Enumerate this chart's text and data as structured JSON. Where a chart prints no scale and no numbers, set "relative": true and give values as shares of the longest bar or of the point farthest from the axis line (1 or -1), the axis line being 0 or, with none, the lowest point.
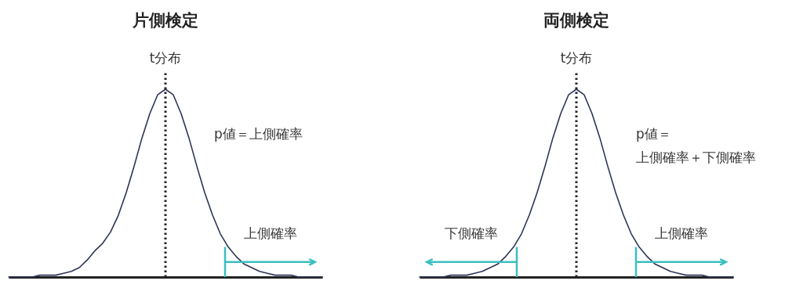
{
  "chart_data": [
    {
      "type": "line",
      "title": "片側検定",
      "relative": true,
      "categories": [
        null,
        null,
        null,
        null,
        null,
        null,
        null,
        null,
        null,
        null,
        null,
        null,
        null,
        null,
        null,
        null,
        null,
        null,
        null,
        null,
        null,
        null,
        null,
        null,
        null,
        null,
        null,
        null,
        null,
        null,
        null,
        null,
        null,
        null,
        null,
        null,
        null,
        null,
        null,
        null,
        null
      ],
      "series": [
        {
          "color": "#2d3557",
          "values": [
            0,
            0,
            0,
            0,
            0.01,
            0.01,
            0.01,
            0.02,
            0.03,
            0.05,
            0.09,
            0.14,
            0.18,
            0.24,
            0.33,
            0.45,
            0.59,
            0.74,
            0.87,
            0.97,
            1,
            0.97,
            0.87,
            0.74,
            0.59,
            0.45,
            0.33,
            0.23,
            0.16,
            0.11,
            0.07,
            0.05,
            0.03,
            0.02,
            0.01,
            0.01,
            0.01,
            0,
            0,
            0,
            0
          ]
        }
      ],
      "annotations": [
        "t分布",
        "上側確率",
        "p値＝上側確率"
      ]
    },
    {
      "type": "line",
      "title": "両側検定",
      "relative": true,
      "categories": [
        null,
        null,
        null,
        null,
        null,
        null,
        null,
        null,
        null,
        null,
        null,
        null,
        null,
        null,
        null,
        null,
        null,
        null,
        null,
        null,
        null,
        null,
        null,
        null,
        null,
        null,
        null,
        null,
        null,
        null,
        null,
        null,
        null,
        null,
        null,
        null,
        null,
        null,
        null,
        null,
        null
      ],
      "series": [
        {
          "color": "#2d3557",
          "values": [
            0,
            0,
            0,
            0,
            0.01,
            0.01,
            0.01,
            0.02,
            0.03,
            0.05,
            0.07,
            0.11,
            0.16,
            0.23,
            0.33,
            0.45,
            0.59,
            0.74,
            0.87,
            0.97,
            1,
            0.97,
            0.87,
            0.74,
            0.59,
            0.45,
            0.33,
            0.23,
            0.16,
            0.11,
            0.07,
            0.05,
            0.03,
            0.02,
            0.01,
            0.01,
            0.01,
            0,
            0,
            0,
            0
          ]
        }
      ],
      "annotations": [
        "t分布",
        "下側確率",
        "上側確率",
        "p値＝",
        "上側確率＋下側確率"
      ]
    }
  ]
}
